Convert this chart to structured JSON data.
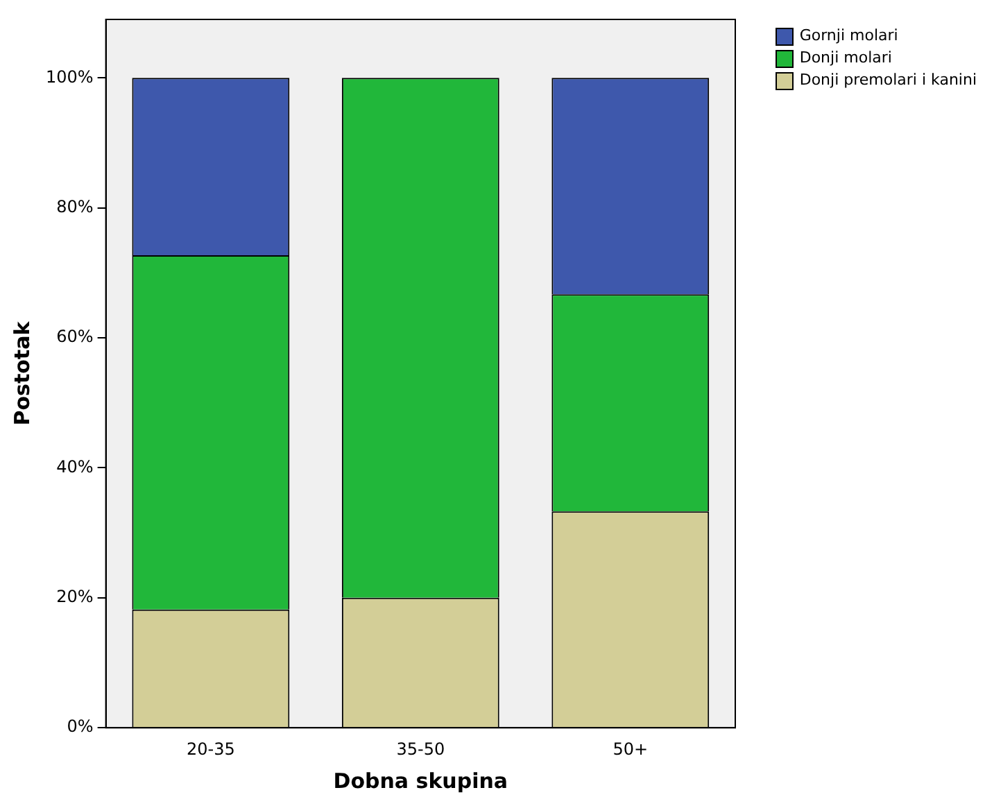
{
  "chart_data": {
    "type": "bar",
    "stacked": true,
    "xlabel": "Dobna skupina",
    "ylabel": "Postotak",
    "categories": [
      "20-35",
      "35-50",
      "50+"
    ],
    "series": [
      {
        "name": "Donji premolari i kanini",
        "color": "#d3ce97",
        "values": [
          18.2,
          20,
          33.3
        ]
      },
      {
        "name": "Donji molari",
        "color": "#21b73a",
        "values": [
          54.5,
          80,
          33.4
        ]
      },
      {
        "name": "Gornji molari",
        "color": "#3e58ac",
        "values": [
          27.3,
          0,
          33.3
        ]
      }
    ],
    "ylim": [
      0,
      109
    ],
    "yticks": [
      {
        "value": 0,
        "label": "0%"
      },
      {
        "value": 20,
        "label": "20%"
      },
      {
        "value": 40,
        "label": "40%"
      },
      {
        "value": 60,
        "label": "60%"
      },
      {
        "value": 80,
        "label": "80%"
      },
      {
        "value": 100,
        "label": "100%"
      }
    ],
    "grid": false,
    "legend": "top right"
  }
}
